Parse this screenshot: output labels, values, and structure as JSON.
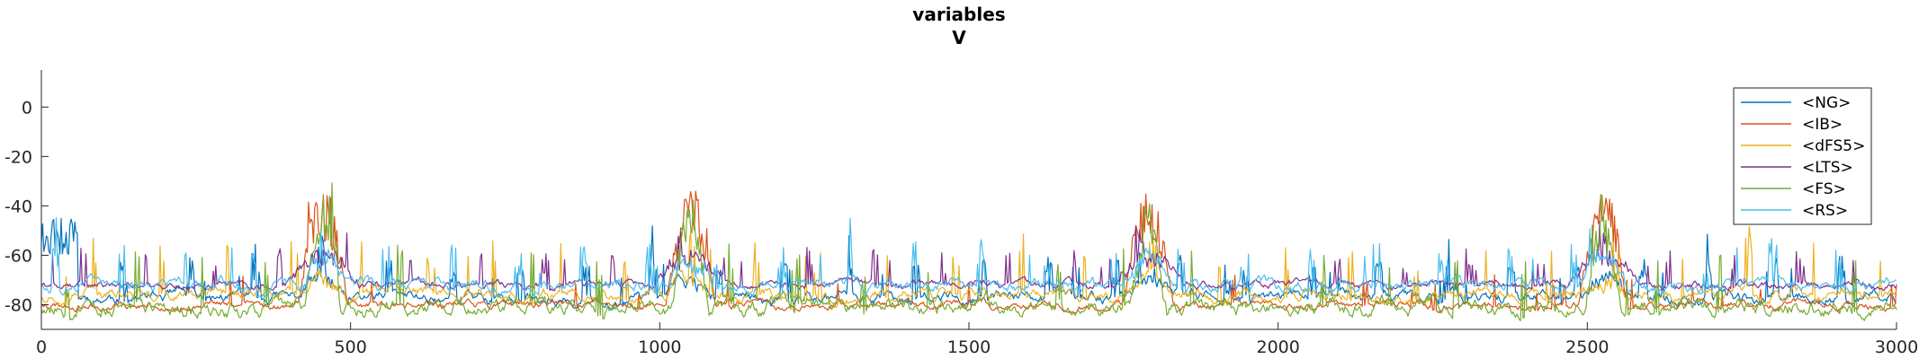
{
  "chart_data": {
    "type": "line",
    "title": "variables",
    "subtitle": "V",
    "xlabel": "",
    "ylabel": "",
    "xlim": [
      0,
      3000
    ],
    "ylim": [
      -90,
      15
    ],
    "xticks": [
      0,
      500,
      1000,
      1500,
      2000,
      2500,
      3000
    ],
    "yticks": [
      0,
      -20,
      -40,
      -60,
      -80
    ],
    "grid": false,
    "legend_position": "top-right",
    "burst_times": [
      455,
      1050,
      1790,
      2525
    ],
    "series": [
      {
        "name": "<NG>",
        "color": "#0072bd",
        "baseline": -77,
        "noise": 3,
        "spikeAmp": 10,
        "spikeDensity": 0.25,
        "burstAmp": 10,
        "burstWidth": 40,
        "seed": 11,
        "initial_transient": [
          -60,
          -45
        ]
      },
      {
        "name": "<IB>",
        "color": "#d95319",
        "baseline": -80,
        "noise": 2,
        "spikeAmp": 8,
        "spikeDensity": 0.05,
        "burstAmp": 50,
        "burstWidth": 40,
        "seed": 23
      },
      {
        "name": "<dFS5>",
        "color": "#edb120",
        "baseline": -76,
        "noise": 3,
        "spikeAmp": 15,
        "spikeDensity": 0.12,
        "burstAmp": 10,
        "burstWidth": 40,
        "seed": 37
      },
      {
        "name": "<LTS>",
        "color": "#7e2f8e",
        "baseline": -72,
        "noise": 2,
        "spikeAmp": 10,
        "spikeDensity": 0.1,
        "burstAmp": 15,
        "burstWidth": 60,
        "seed": 41
      },
      {
        "name": "<FS>",
        "color": "#77ac30",
        "baseline": -81,
        "noise": 4,
        "spikeAmp": 15,
        "spikeDensity": 0.1,
        "burstAmp": 45,
        "burstWidth": 30,
        "seed": 53
      },
      {
        "name": "<RS>",
        "color": "#4dbeee",
        "baseline": -72,
        "noise": 3,
        "spikeAmp": 12,
        "spikeDensity": 0.15,
        "burstAmp": 15,
        "burstWidth": 40,
        "seed": 67
      }
    ]
  }
}
